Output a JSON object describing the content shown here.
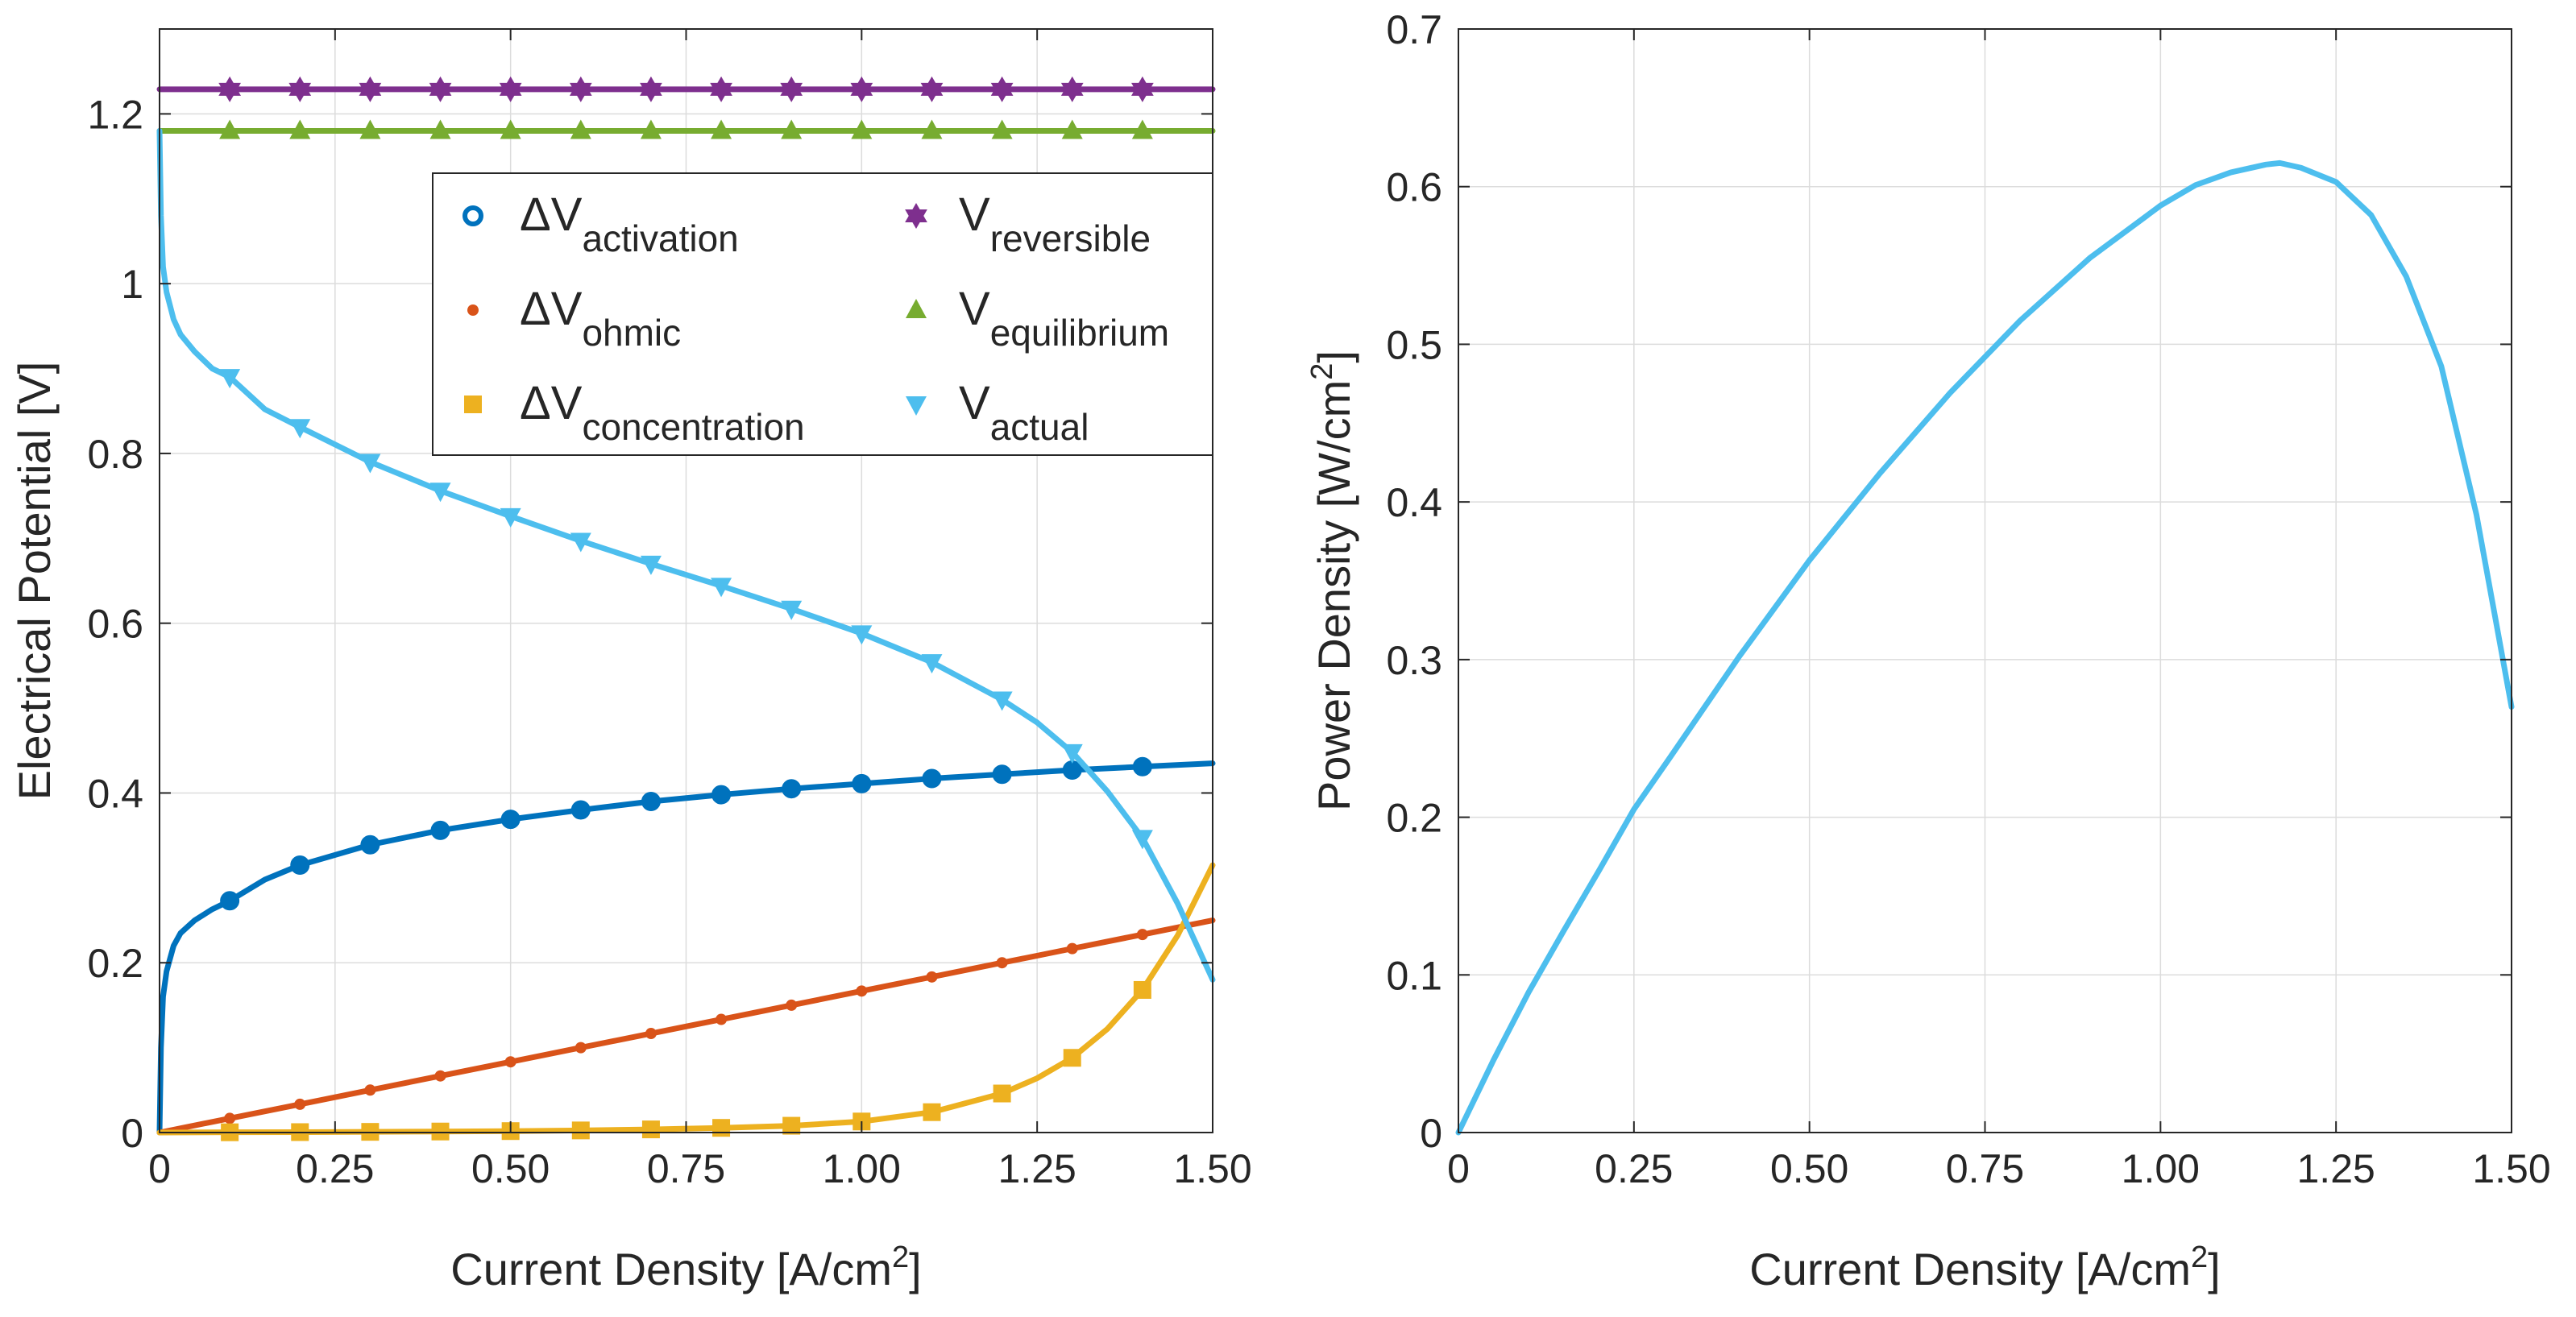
{
  "chart_data": [
    {
      "type": "line",
      "title": "",
      "xlabel": "Current Density [A/cm",
      "xlabel_sup": "2",
      "xlabel_end": "]",
      "ylabel": "Electrical Potential [V]",
      "xlim": [
        0,
        1.5
      ],
      "ylim": [
        0,
        1.3
      ],
      "xticks": [
        "0",
        "0.25",
        "0.50",
        "0.75",
        "1.00",
        "1.25",
        "1.50"
      ],
      "xtick_values": [
        0,
        0.25,
        0.5,
        0.75,
        1.0,
        1.25,
        1.5
      ],
      "yticks": [
        "0",
        "0.2",
        "0.4",
        "0.6",
        "0.8",
        "1",
        "1.2"
      ],
      "ytick_values": [
        0,
        0.2,
        0.4,
        0.6,
        0.8,
        1.0,
        1.2
      ],
      "grid": true,
      "legend_position": "top-right",
      "marker_x": [
        0.1,
        0.2,
        0.3,
        0.4,
        0.5,
        0.6,
        0.7,
        0.8,
        0.9,
        1.0,
        1.1,
        1.2,
        1.3,
        1.4
      ],
      "series": [
        {
          "name": "ΔV",
          "sub": "activation",
          "color": "#0072BD",
          "marker": "circle",
          "x": [
            0,
            0.002,
            0.005,
            0.01,
            0.02,
            0.03,
            0.05,
            0.075,
            0.1,
            0.15,
            0.2,
            0.3,
            0.4,
            0.5,
            0.6,
            0.7,
            0.8,
            0.9,
            1.0,
            1.1,
            1.2,
            1.3,
            1.4,
            1.5
          ],
          "values": [
            0,
            0.1,
            0.16,
            0.19,
            0.22,
            0.235,
            0.25,
            0.263,
            0.273,
            0.298,
            0.315,
            0.339,
            0.356,
            0.369,
            0.38,
            0.39,
            0.398,
            0.405,
            0.411,
            0.417,
            0.422,
            0.427,
            0.431,
            0.435
          ]
        },
        {
          "name": "ΔV",
          "sub": "ohmic",
          "color": "#D95319",
          "marker": "dot",
          "x": [
            0,
            0.1,
            0.2,
            0.3,
            0.4,
            0.5,
            0.6,
            0.7,
            0.8,
            0.9,
            1.0,
            1.1,
            1.2,
            1.3,
            1.4,
            1.5
          ],
          "values": [
            0,
            0.0167,
            0.0333,
            0.05,
            0.0667,
            0.0833,
            0.1,
            0.1167,
            0.1333,
            0.15,
            0.1667,
            0.1833,
            0.2,
            0.2167,
            0.2333,
            0.25
          ]
        },
        {
          "name": "ΔV",
          "sub": "concentration",
          "color": "#EDB120",
          "marker": "square",
          "x": [
            0,
            0.1,
            0.2,
            0.3,
            0.4,
            0.5,
            0.6,
            0.7,
            0.8,
            0.9,
            1.0,
            1.1,
            1.2,
            1.25,
            1.3,
            1.35,
            1.4,
            1.45,
            1.5
          ],
          "values": [
            0,
            0.0003,
            0.0005,
            0.0008,
            0.0012,
            0.0017,
            0.0025,
            0.0037,
            0.0055,
            0.008,
            0.013,
            0.024,
            0.046,
            0.064,
            0.088,
            0.122,
            0.168,
            0.232,
            0.315
          ]
        },
        {
          "name": "V",
          "sub": "reversible",
          "color": "#7E2F8E",
          "marker": "hexagram",
          "x": [
            0,
            1.5
          ],
          "values": [
            1.229,
            1.229
          ]
        },
        {
          "name": "V",
          "sub": "equilibrium",
          "color": "#77AC30",
          "marker": "triangle-up",
          "x": [
            0,
            1.5
          ],
          "values": [
            1.18,
            1.18
          ]
        },
        {
          "name": "V",
          "sub": "actual",
          "color": "#4DBEEE",
          "marker": "triangle-down",
          "x": [
            0,
            0.002,
            0.005,
            0.01,
            0.02,
            0.03,
            0.05,
            0.075,
            0.1,
            0.15,
            0.2,
            0.3,
            0.4,
            0.5,
            0.6,
            0.7,
            0.8,
            0.9,
            1.0,
            1.1,
            1.2,
            1.25,
            1.3,
            1.35,
            1.4,
            1.45,
            1.5
          ],
          "values": [
            1.18,
            1.08,
            1.02,
            0.99,
            0.958,
            0.94,
            0.92,
            0.9,
            0.89,
            0.852,
            0.831,
            0.79,
            0.756,
            0.726,
            0.697,
            0.67,
            0.644,
            0.617,
            0.588,
            0.554,
            0.51,
            0.483,
            0.448,
            0.402,
            0.347,
            0.27,
            0.18
          ]
        }
      ]
    },
    {
      "type": "line",
      "title": "",
      "xlabel": "Current Density [A/cm",
      "xlabel_sup": "2",
      "xlabel_end": "]",
      "ylabel": "Power Density [W/cm",
      "ylabel_sup": "2",
      "ylabel_end": "]",
      "xlim": [
        0,
        1.5
      ],
      "ylim": [
        0,
        0.7
      ],
      "xticks": [
        "0",
        "0.25",
        "0.50",
        "0.75",
        "1.00",
        "1.25",
        "1.50"
      ],
      "xtick_values": [
        0,
        0.25,
        0.5,
        0.75,
        1.0,
        1.25,
        1.5
      ],
      "yticks": [
        "0",
        "0.1",
        "0.2",
        "0.3",
        "0.4",
        "0.5",
        "0.6",
        "0.7"
      ],
      "ytick_values": [
        0,
        0.1,
        0.2,
        0.3,
        0.4,
        0.5,
        0.6,
        0.7
      ],
      "grid": true,
      "series": [
        {
          "name": "Power Density",
          "color": "#4DBEEE",
          "x": [
            0,
            0.05,
            0.1,
            0.15,
            0.2,
            0.25,
            0.3,
            0.4,
            0.5,
            0.6,
            0.7,
            0.8,
            0.9,
            1.0,
            1.05,
            1.1,
            1.15,
            1.17,
            1.2,
            1.25,
            1.3,
            1.35,
            1.4,
            1.45,
            1.5
          ],
          "values": [
            0,
            0.046,
            0.089,
            0.128,
            0.166,
            0.205,
            0.237,
            0.302,
            0.363,
            0.418,
            0.469,
            0.515,
            0.555,
            0.588,
            0.601,
            0.609,
            0.614,
            0.615,
            0.612,
            0.603,
            0.582,
            0.543,
            0.486,
            0.392,
            0.27
          ]
        }
      ]
    }
  ]
}
